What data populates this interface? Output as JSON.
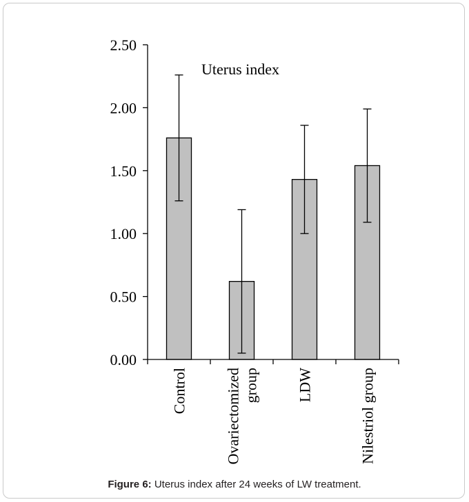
{
  "chart_data": {
    "type": "bar",
    "title": "Uterus index",
    "categories": [
      "Control",
      "Ovariectomized\ngroup",
      "LDW",
      "Nilestriol group"
    ],
    "values": [
      1.76,
      0.62,
      1.43,
      1.54
    ],
    "errors": [
      0.5,
      0.57,
      0.43,
      0.45
    ],
    "ylim": [
      0,
      2.5
    ],
    "yticks": [
      0.0,
      0.5,
      1.0,
      1.5,
      2.0,
      2.5
    ],
    "ytick_labels": [
      "0.00",
      "0.50",
      "1.00",
      "1.50",
      "2.00",
      "2.50"
    ],
    "grid": false,
    "bar_color": "#c0c0c0"
  },
  "caption": {
    "label": "Figure 6:",
    "text": " Uterus index after 24 weeks of LW treatment."
  }
}
